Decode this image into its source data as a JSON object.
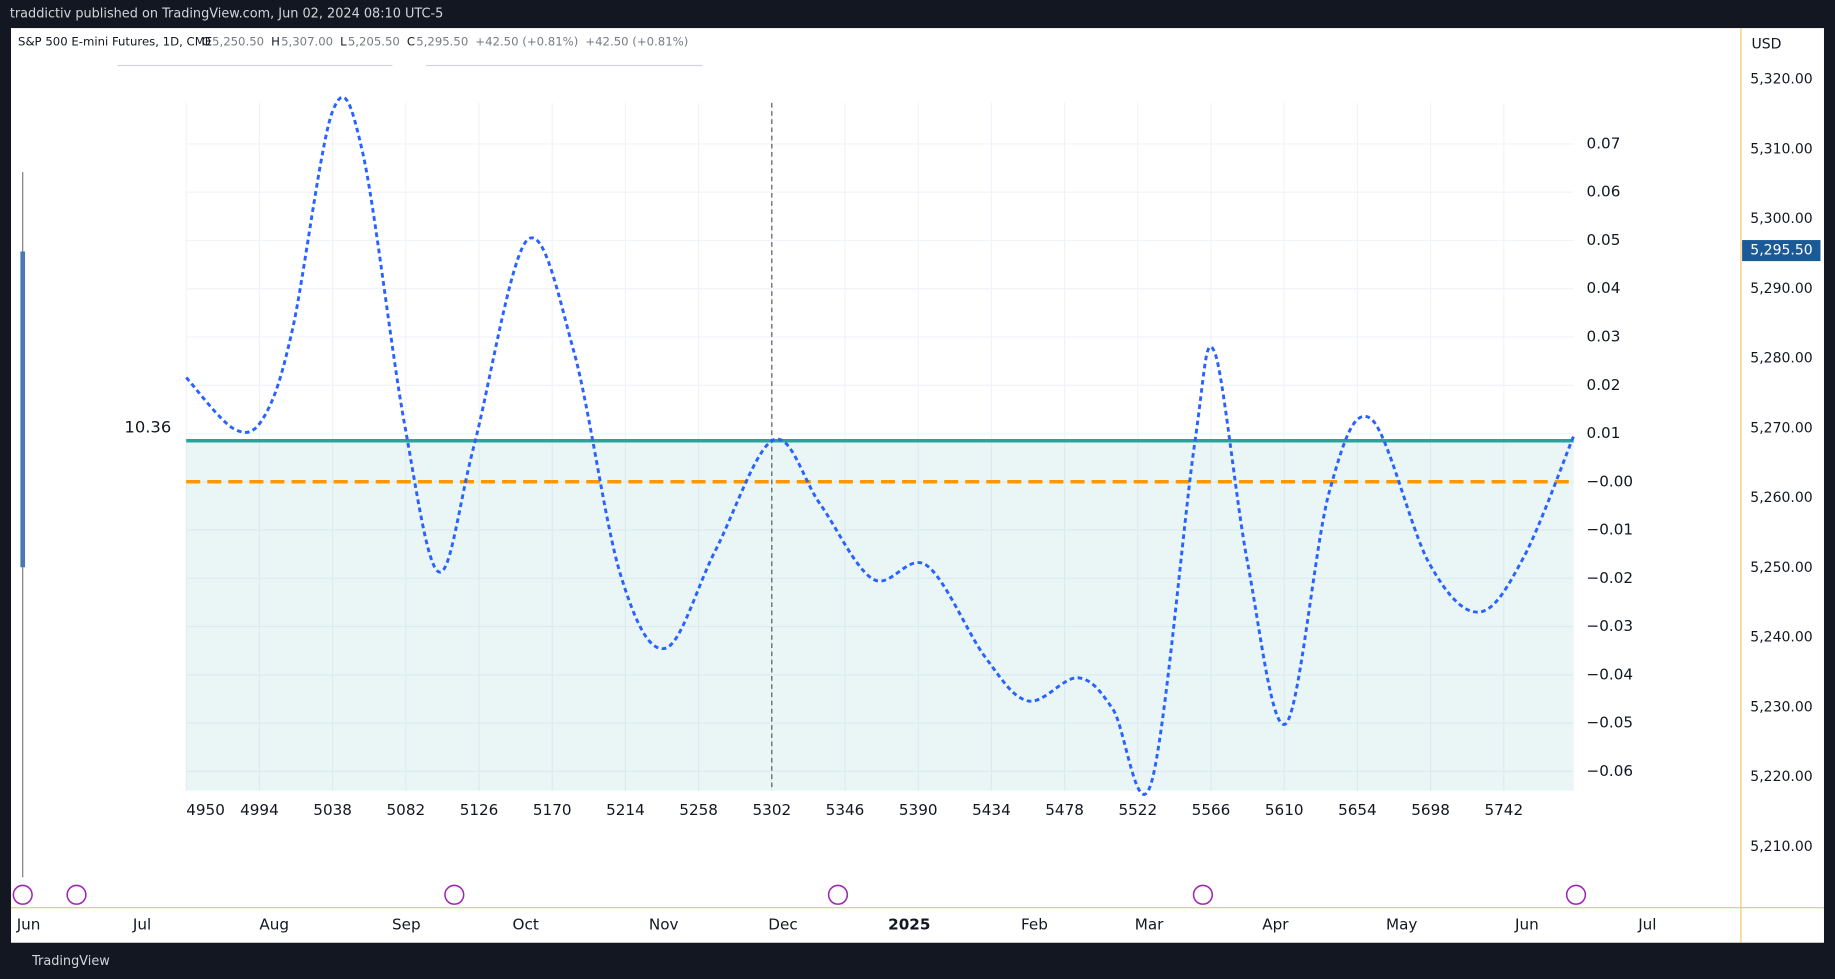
{
  "header": {
    "text": "traddictiv published on TradingView.com, Jun 02, 2024 08:10 UTC-5"
  },
  "legend": {
    "symbol": "S&P 500 E-mini Futures, 1D, CME",
    "ohlc": [
      {
        "label": "O",
        "value": "5,250.50"
      },
      {
        "label": "H",
        "value": "5,307.00"
      },
      {
        "label": "L",
        "value": "5,205.50"
      },
      {
        "label": "C",
        "value": "5,295.50"
      }
    ],
    "changes": [
      "+42.50 (+0.81%)",
      "+42.50 (+0.81%)"
    ]
  },
  "price_axis": {
    "currency": "USD",
    "ylim": [
      5201.3,
      5327.4
    ],
    "yticks": [
      {
        "value": 5210,
        "label": "5,210.00"
      },
      {
        "value": 5220,
        "label": "5,220.00"
      },
      {
        "value": 5230,
        "label": "5,230.00"
      },
      {
        "value": 5240,
        "label": "5,240.00"
      },
      {
        "value": 5250,
        "label": "5,250.00"
      },
      {
        "value": 5260,
        "label": "5,260.00"
      },
      {
        "value": 5270,
        "label": "5,270.00"
      },
      {
        "value": 5280,
        "label": "5,280.00"
      },
      {
        "value": 5290,
        "label": "5,290.00"
      },
      {
        "value": 5300,
        "label": "5,300.00"
      },
      {
        "value": 5310,
        "label": "5,310.00"
      },
      {
        "value": 5320,
        "label": "5,320.00"
      }
    ],
    "last_price": {
      "value": 5295.5,
      "label": "5,295.50"
    }
  },
  "time_axis": {
    "labels": [
      "Jun",
      "Jul",
      "Aug",
      "Sep",
      "Oct",
      "Nov",
      "Dec",
      "2025",
      "Feb",
      "Mar",
      "Apr",
      "May",
      "Jun",
      "Jul"
    ]
  },
  "side_label": "10.36",
  "footer": {
    "brand": "TradingView"
  },
  "chart_data": {
    "type": "line",
    "x": [
      4950,
      4979,
      4997,
      5014,
      5038,
      5056,
      5081,
      5102,
      5123,
      5155,
      5183,
      5211,
      5238,
      5268,
      5303,
      5331,
      5363,
      5395,
      5430,
      5456,
      5486,
      5507,
      5530,
      5556,
      5568,
      5588,
      5611,
      5637,
      5662,
      5697,
      5727,
      5754,
      5784
    ],
    "series": [
      {
        "color": "#2962ff",
        "values": [
          0.0216,
          0.0109,
          0.0136,
          0.0318,
          0.0768,
          0.0683,
          0.0124,
          -0.0187,
          0.0075,
          0.0501,
          0.027,
          -0.0192,
          -0.0345,
          -0.0143,
          0.0087,
          -0.0046,
          -0.0202,
          -0.0173,
          -0.0362,
          -0.0454,
          -0.0406,
          -0.0471,
          -0.0625,
          0.0075,
          0.027,
          -0.0168,
          -0.0501,
          -0.0022,
          0.0131,
          -0.0168,
          -0.027,
          -0.0156,
          0.0095
        ]
      }
    ],
    "hlines": [
      {
        "value": 0.0085,
        "color": "#26a69a",
        "style": "solid"
      },
      {
        "value": 0,
        "color": "#ff9800",
        "style": "dashed"
      }
    ],
    "vline": 5302,
    "xlim": [
      4950,
      5784
    ],
    "ylim": [
      -0.064,
      0.0785
    ],
    "xticks": [
      4950,
      4994,
      5038,
      5082,
      5126,
      5170,
      5214,
      5258,
      5302,
      5346,
      5390,
      5434,
      5478,
      5522,
      5566,
      5610,
      5654,
      5698,
      5742
    ],
    "yticks": [
      {
        "value": -0.06,
        "label": "−0.06"
      },
      {
        "value": -0.05,
        "label": "−0.05"
      },
      {
        "value": -0.04,
        "label": "−0.04"
      },
      {
        "value": -0.03,
        "label": "−0.03"
      },
      {
        "value": -0.02,
        "label": "−0.02"
      },
      {
        "value": -0.01,
        "label": "−0.01"
      },
      {
        "value": 0,
        "label": "−0.00"
      },
      0.01,
      0.02,
      0.03,
      0.04,
      0.05,
      0.06,
      0.07
    ],
    "grid": true
  }
}
